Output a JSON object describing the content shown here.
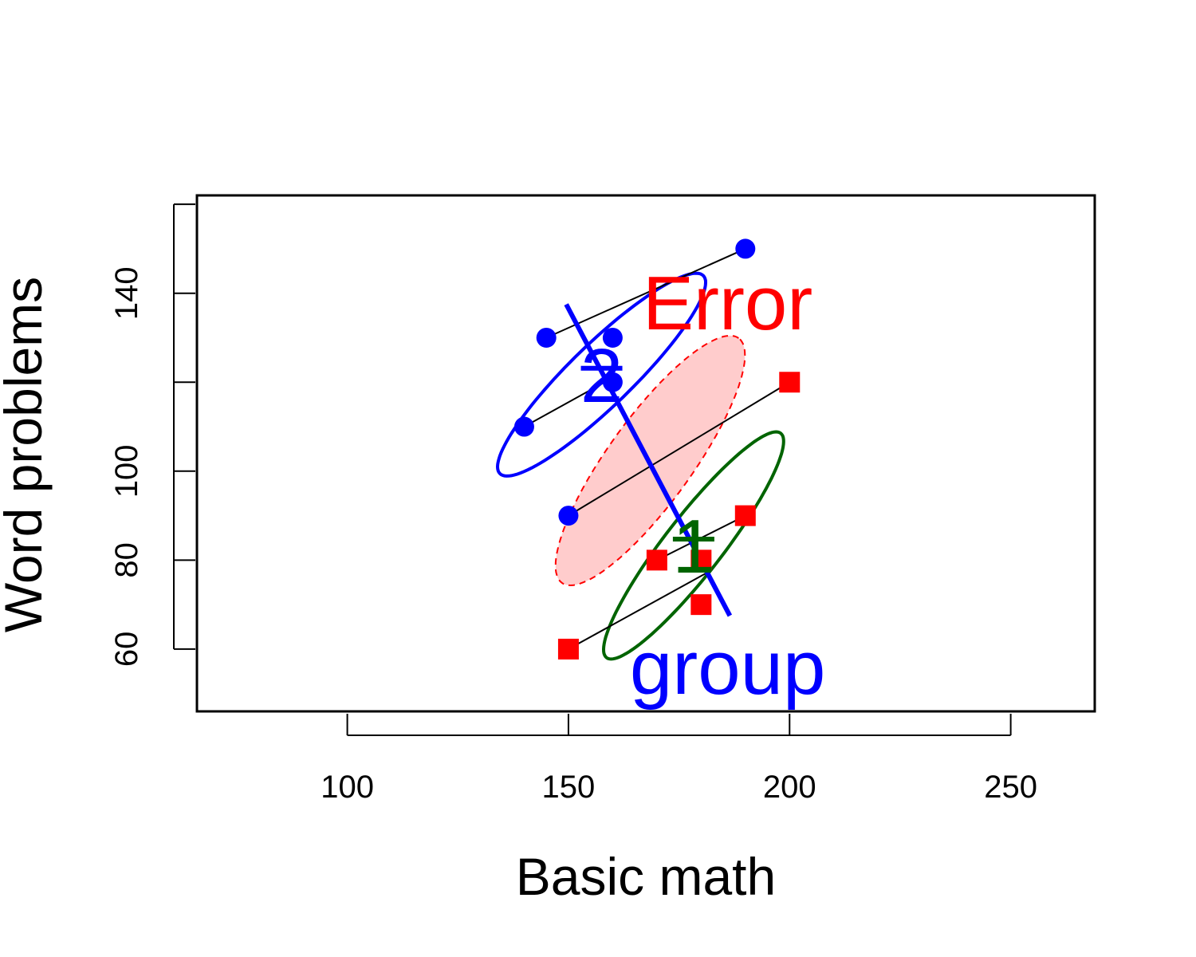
{
  "chart_data": {
    "type": "scatter",
    "title": "",
    "xlabel": "Basic math",
    "ylabel": "Word problems",
    "xlim": [
      66,
      269
    ],
    "ylim": [
      46,
      162
    ],
    "x_ticks": [
      100,
      150,
      200,
      250
    ],
    "y_ticks": [
      60,
      80,
      100,
      120,
      140,
      160
    ],
    "y_tick_labels": [
      "60",
      "80",
      "100",
      "",
      "140",
      ""
    ],
    "grid": false,
    "colors": {
      "group1": "#006400",
      "group2": "#0000ff",
      "error": "#ff0000",
      "error_fill": "#ff000033",
      "fit_lines": "#000000"
    },
    "series": [
      {
        "group": "1",
        "marker": "square",
        "points": [
          [
            150,
            60
          ],
          [
            170,
            80
          ],
          [
            180,
            70
          ],
          [
            180,
            80
          ],
          [
            190,
            90
          ],
          [
            200,
            120
          ]
        ]
      },
      {
        "group": "2",
        "marker": "circle",
        "points": [
          [
            140,
            110
          ],
          [
            145,
            130
          ],
          [
            150,
            90
          ],
          [
            160,
            120
          ],
          [
            160,
            130
          ],
          [
            190,
            150
          ]
        ]
      }
    ],
    "group_means": [
      {
        "label": "1",
        "x": 178.3,
        "y": 83.3
      },
      {
        "label": "2",
        "x": 157.5,
        "y": 121.7
      }
    ],
    "fit_lines": [
      {
        "from": [
          140,
          110
        ],
        "to": [
          160,
          121
        ]
      },
      {
        "from": [
          145,
          130
        ],
        "to": [
          190,
          150
        ]
      },
      {
        "from": [
          150,
          90
        ],
        "to": [
          200,
          120
        ]
      },
      {
        "from": [
          150,
          60
        ],
        "to": [
          181,
          77
        ]
      },
      {
        "from": [
          170,
          80
        ],
        "to": [
          190,
          90
        ]
      }
    ],
    "ellipses": [
      {
        "name": "group-1",
        "cx": 178.3,
        "cy": 83.3,
        "a": 32,
        "b": 6.5,
        "angle_deg": 52,
        "style": "solid",
        "color": "#006400"
      },
      {
        "name": "group-2",
        "cx": 157.5,
        "cy": 121.7,
        "a": 32,
        "b": 7,
        "angle_deg": 44,
        "style": "solid",
        "color": "#0000ff"
      },
      {
        "name": "error",
        "cx": 168.5,
        "cy": 102.4,
        "a": 34,
        "b": 9.5,
        "angle_deg": 54,
        "style": "dashed",
        "color": "#ff0000"
      }
    ],
    "hypothesis_line": {
      "from": [
        149.5,
        137.5
      ],
      "to": [
        186.5,
        67.5
      ],
      "color": "#0000ff"
    },
    "annotations": [
      {
        "text": "Error",
        "x": 186,
        "y": 138,
        "color": "#ff0000"
      },
      {
        "text": "group",
        "x": 186,
        "y": 56,
        "color": "#0000ff"
      },
      {
        "text": "1",
        "x": 178.3,
        "y": 83.3,
        "color": "#006400"
      },
      {
        "text": "2",
        "x": 157.5,
        "y": 121.7,
        "color": "#0000ff"
      }
    ]
  }
}
